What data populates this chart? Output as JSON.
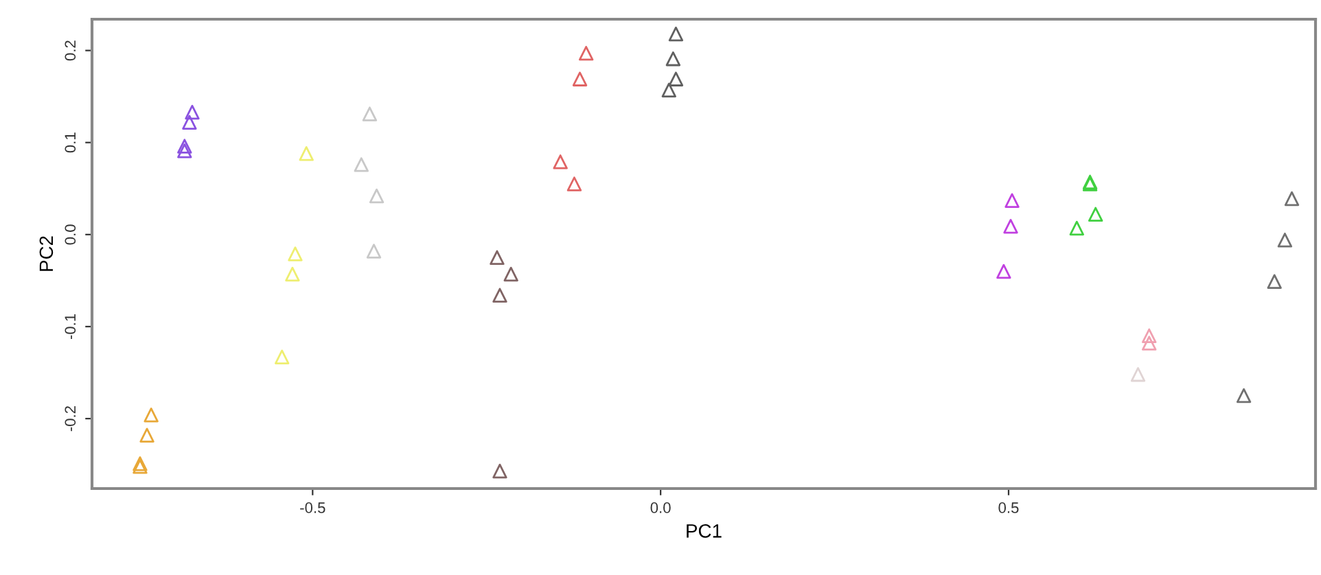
{
  "chart_data": {
    "type": "scatter",
    "xlabel": "PC1",
    "ylabel": "PC2",
    "marker": "triangle",
    "grid": false,
    "legend": false,
    "xlim": [
      -0.817,
      0.941
    ],
    "ylim": [
      -0.276,
      0.234
    ],
    "xticks": [
      -0.5,
      {
        "value": 0,
        "label": "0.0"
      },
      0.5
    ],
    "yticks": [
      -0.2,
      -0.1,
      {
        "value": 0,
        "label": "0.0"
      },
      0.1,
      0.2
    ],
    "series": [
      {
        "color": "#8a52e0",
        "x": [
          -0.673,
          -0.677,
          -0.684,
          -0.684
        ],
        "values": [
          0.133,
          0.122,
          0.096,
          0.091
        ]
      },
      {
        "color": "#e8a838",
        "x": [
          -0.732,
          -0.738,
          -0.748,
          -0.748
        ],
        "values": [
          -0.196,
          -0.218,
          -0.252,
          -0.249
        ]
      },
      {
        "color": "#eeee70",
        "x": [
          -0.509,
          -0.525,
          -0.529,
          -0.544
        ],
        "values": [
          0.088,
          -0.021,
          -0.043,
          -0.133
        ]
      },
      {
        "color": "#c8c8c8",
        "x": [
          -0.418,
          -0.43,
          -0.408,
          -0.412
        ],
        "values": [
          0.131,
          0.076,
          0.042,
          -0.018
        ]
      },
      {
        "color": "#e06464",
        "x": [
          -0.107,
          -0.116,
          -0.144,
          -0.124
        ],
        "values": [
          0.197,
          0.169,
          0.079,
          0.055
        ]
      },
      {
        "color": "#806464",
        "x": [
          -0.235,
          -0.215,
          -0.231,
          -0.231
        ],
        "values": [
          -0.025,
          -0.043,
          -0.066,
          -0.257
        ]
      },
      {
        "color": "#606060",
        "x": [
          0.022,
          0.018,
          0.022,
          0.012
        ],
        "values": [
          0.218,
          0.191,
          0.169,
          0.157
        ]
      },
      {
        "color": "#c040e0",
        "x": [
          0.505,
          0.503,
          0.493
        ],
        "values": [
          0.037,
          0.009,
          -0.04
        ]
      },
      {
        "color": "#40d040",
        "x": [
          0.617,
          0.617,
          0.625,
          0.598
        ],
        "values": [
          0.057,
          0.055,
          0.022,
          0.007
        ]
      },
      {
        "color": "#707070",
        "x": [
          0.907,
          0.897,
          0.882,
          0.838
        ],
        "values": [
          0.039,
          -0.006,
          -0.051,
          -0.175
        ]
      },
      {
        "color": "#f0a0b0",
        "x": [
          0.702,
          0.702
        ],
        "values": [
          -0.11,
          -0.118
        ]
      },
      {
        "color": "#e0d4d4",
        "x": [
          0.686
        ],
        "values": [
          -0.152
        ]
      }
    ]
  }
}
